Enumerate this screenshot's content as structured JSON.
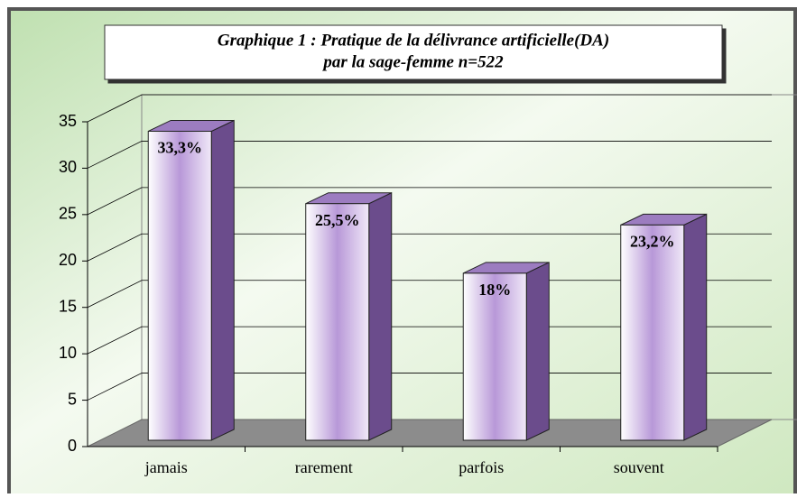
{
  "chart_data": {
    "type": "bar3d",
    "title": [
      "Graphique 1 : Pratique de la délivrance artificielle(DA)",
      "par la sage-femme n=522"
    ],
    "categories": [
      "jamais",
      "rarement",
      "parfois",
      "souvent"
    ],
    "values": [
      33.3,
      25.5,
      18,
      23.2
    ],
    "value_labels": [
      "33,3%",
      "25,5%",
      "18%",
      "23,2%"
    ],
    "color": "#a685c9",
    "ylim": [
      0,
      35
    ],
    "yticks": [
      0,
      5,
      10,
      15,
      20,
      25,
      30,
      35
    ],
    "grid": true
  }
}
